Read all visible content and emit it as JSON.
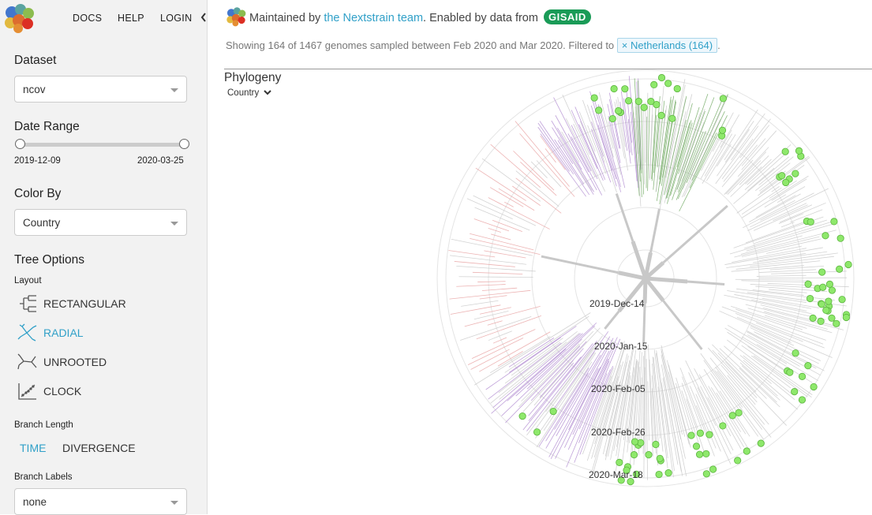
{
  "nav": {
    "docs": "DOCS",
    "help": "HELP",
    "login": "LOGIN"
  },
  "sidebar": {
    "dataset_title": "Dataset",
    "dataset_value": "ncov",
    "date_range_title": "Date Range",
    "date_start": "2019-12-09",
    "date_end": "2020-03-25",
    "color_by_title": "Color By",
    "color_by_value": "Country",
    "tree_options_title": "Tree Options",
    "layout_title": "Layout",
    "layouts": [
      {
        "label": "RECTANGULAR",
        "icon": "rectangular-tree-icon",
        "selected": false
      },
      {
        "label": "RADIAL",
        "icon": "radial-tree-icon",
        "selected": true
      },
      {
        "label": "UNROOTED",
        "icon": "unrooted-tree-icon",
        "selected": false
      },
      {
        "label": "CLOCK",
        "icon": "clock-tree-icon",
        "selected": false
      }
    ],
    "branch_length_title": "Branch Length",
    "branch_length_options": [
      {
        "label": "TIME",
        "selected": true
      },
      {
        "label": "DIVERGENCE",
        "selected": false
      }
    ],
    "branch_labels_title": "Branch Labels",
    "branch_labels_value": "none"
  },
  "header": {
    "maintained_prefix": "Maintained by",
    "team_link": "the Nextstrain team",
    "enabled_text": ". Enabled by data from",
    "gisaid": "GISAID",
    "showing_text": "Showing 164 of 1467 genomes sampled between Feb 2020 and Mar 2020. Filtered to",
    "filter_chip_x": "×",
    "filter_chip_label": "Netherlands (164)",
    "trailing_period": "."
  },
  "panel": {
    "title": "Phylogeny",
    "color_dropdown": "Country"
  },
  "tree": {
    "axis_labels": [
      "2019-Dec-14",
      "2020-Jan-15",
      "2020-Feb-05",
      "2020-Feb-26",
      "2020-Mar-18"
    ],
    "colors": {
      "highlight_tip": "#8ee86b",
      "highlight_branch": "#6fa860",
      "other_branch": "#c8c8c8",
      "china_branch": "#e8a0a0",
      "purple_branch": "#b08ad0",
      "accent": "#30a0c8"
    }
  }
}
